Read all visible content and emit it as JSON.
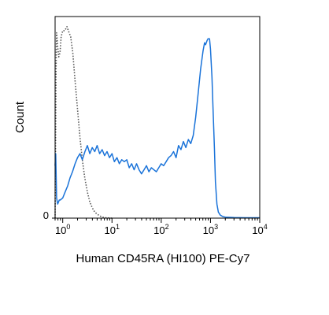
{
  "chart_data": {
    "type": "line",
    "title": "",
    "xlabel": "Human CD45RA (HI100) PE-Cy7",
    "ylabel": "Count",
    "x_scale": "log",
    "xlim": [
      0.7,
      10000
    ],
    "ylim": [
      0,
      100
    ],
    "grid": false,
    "legend": "none",
    "x_ticks": [
      {
        "value": 1,
        "base": "10",
        "exp": "0"
      },
      {
        "value": 10,
        "base": "10",
        "exp": "1"
      },
      {
        "value": 100,
        "base": "10",
        "exp": "2"
      },
      {
        "value": 1000,
        "base": "10",
        "exp": "3"
      },
      {
        "value": 10000,
        "base": "10",
        "exp": "4"
      }
    ],
    "y_ticks": [
      {
        "value": 0,
        "label": "0"
      }
    ],
    "series": [
      {
        "style": "dotted",
        "color": "#555555",
        "points": [
          [
            0.7,
            0
          ],
          [
            0.73,
            70
          ],
          [
            0.75,
            92
          ],
          [
            0.79,
            85
          ],
          [
            0.83,
            80
          ],
          [
            0.88,
            82
          ],
          [
            0.93,
            90
          ],
          [
            1.0,
            93
          ],
          [
            1.1,
            93
          ],
          [
            1.22,
            95
          ],
          [
            1.3,
            93
          ],
          [
            1.45,
            90
          ],
          [
            1.6,
            82
          ],
          [
            1.78,
            68
          ],
          [
            2.0,
            54
          ],
          [
            2.24,
            40
          ],
          [
            2.5,
            29
          ],
          [
            2.8,
            20
          ],
          [
            3.16,
            13
          ],
          [
            3.55,
            8
          ],
          [
            4.0,
            5
          ],
          [
            4.47,
            3
          ],
          [
            5.0,
            2
          ],
          [
            5.6,
            1.2
          ],
          [
            6.3,
            0.5
          ],
          [
            7.5,
            0.2
          ],
          [
            10,
            0
          ]
        ]
      },
      {
        "style": "solid",
        "color": "#1a73d9",
        "points": [
          [
            0.7,
            26
          ],
          [
            0.72,
            32
          ],
          [
            0.75,
            10
          ],
          [
            0.79,
            7
          ],
          [
            0.85,
            9
          ],
          [
            0.89,
            9
          ],
          [
            1.0,
            10
          ],
          [
            1.12,
            13
          ],
          [
            1.26,
            16
          ],
          [
            1.41,
            20
          ],
          [
            1.58,
            23
          ],
          [
            1.78,
            27
          ],
          [
            2.0,
            30
          ],
          [
            2.24,
            32
          ],
          [
            2.5,
            29
          ],
          [
            2.82,
            33
          ],
          [
            3.16,
            36
          ],
          [
            3.55,
            32
          ],
          [
            3.98,
            35
          ],
          [
            4.47,
            33
          ],
          [
            5.0,
            36
          ],
          [
            5.62,
            32
          ],
          [
            6.31,
            34
          ],
          [
            7.08,
            31
          ],
          [
            7.94,
            33
          ],
          [
            8.91,
            30
          ],
          [
            10,
            32
          ],
          [
            11.2,
            28
          ],
          [
            12.6,
            30
          ],
          [
            14.1,
            27
          ],
          [
            15.8,
            29
          ],
          [
            17.8,
            28
          ],
          [
            20,
            29
          ],
          [
            22.4,
            25
          ],
          [
            25.1,
            27
          ],
          [
            28.2,
            24
          ],
          [
            31.6,
            27
          ],
          [
            35.5,
            24
          ],
          [
            39.8,
            22
          ],
          [
            44.7,
            24
          ],
          [
            50.1,
            26
          ],
          [
            56.2,
            23
          ],
          [
            63.1,
            25
          ],
          [
            70.8,
            24
          ],
          [
            79.4,
            23
          ],
          [
            89.1,
            25
          ],
          [
            100,
            27
          ],
          [
            112,
            26
          ],
          [
            126,
            28
          ],
          [
            141,
            30
          ],
          [
            158,
            31
          ],
          [
            178,
            33
          ],
          [
            200,
            30
          ],
          [
            224,
            36
          ],
          [
            251,
            34
          ],
          [
            282,
            38
          ],
          [
            316,
            35
          ],
          [
            355,
            39
          ],
          [
            398,
            37
          ],
          [
            447,
            41
          ],
          [
            501,
            50
          ],
          [
            562,
            62
          ],
          [
            631,
            74
          ],
          [
            708,
            83
          ],
          [
            759,
            87
          ],
          [
            794,
            86
          ],
          [
            851,
            88
          ],
          [
            891,
            89
          ],
          [
            955,
            89
          ],
          [
            1000,
            84
          ],
          [
            1072,
            70
          ],
          [
            1122,
            55
          ],
          [
            1202,
            35
          ],
          [
            1259,
            18
          ],
          [
            1349,
            7
          ],
          [
            1445,
            3
          ],
          [
            1585,
            1.5
          ],
          [
            1778,
            0.8
          ],
          [
            2000,
            0.5
          ],
          [
            3000,
            0.3
          ],
          [
            5000,
            0.2
          ],
          [
            10000,
            0.2
          ]
        ]
      }
    ]
  }
}
